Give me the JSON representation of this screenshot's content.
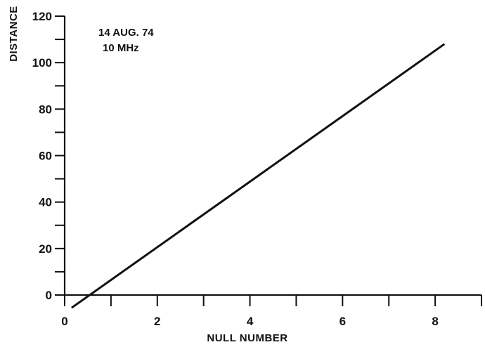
{
  "chart_data": {
    "type": "line",
    "title": "",
    "xlabel": "NULL NUMBER",
    "ylabel": "DISTANCE",
    "xlim": [
      0,
      9
    ],
    "ylim": [
      0,
      120
    ],
    "x_ticks": [
      0,
      1,
      2,
      3,
      4,
      5,
      6,
      7,
      8,
      9
    ],
    "x_tick_labels": [
      {
        "value": 0,
        "label": "0"
      },
      {
        "value": 2,
        "label": "2"
      },
      {
        "value": 4,
        "label": "4"
      },
      {
        "value": 6,
        "label": "6"
      },
      {
        "value": 8,
        "label": "8"
      }
    ],
    "y_ticks": [
      0,
      10,
      20,
      30,
      40,
      50,
      60,
      70,
      80,
      90,
      100,
      110,
      120
    ],
    "y_tick_labels": [
      {
        "value": 0,
        "label": "0"
      },
      {
        "value": 20,
        "label": "20"
      },
      {
        "value": 40,
        "label": "40"
      },
      {
        "value": 60,
        "label": "60"
      },
      {
        "value": 80,
        "label": "80"
      },
      {
        "value": 100,
        "label": "100"
      },
      {
        "value": 120,
        "label": "120"
      }
    ],
    "grid": false,
    "legend": "none",
    "annotations": [
      "14 AUG. 74",
      "10 MHz"
    ],
    "series": [
      {
        "x": [
          0.15,
          8.2
        ],
        "y": [
          -5.5,
          108
        ]
      }
    ]
  }
}
